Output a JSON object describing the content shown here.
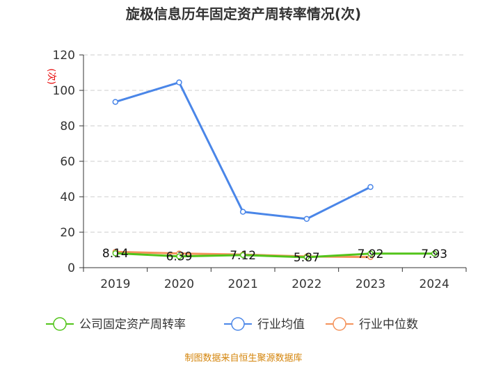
{
  "chart_data": {
    "type": "line",
    "title": "旋极信息历年固定资产周转率情况(次)",
    "ylabel": "(次)",
    "xlabel": "",
    "categories": [
      "2019",
      "2020",
      "2021",
      "2022",
      "2023",
      "2024"
    ],
    "ylim": [
      0,
      120
    ],
    "yticks": [
      "0",
      "20",
      "40",
      "60",
      "80",
      "100",
      "120"
    ],
    "grid": true,
    "series": [
      {
        "name": "公司固定资产周转率",
        "color": "#52c41a",
        "values": [
          8.14,
          6.39,
          7.12,
          5.87,
          7.92,
          7.93
        ],
        "labels": [
          "8.14",
          "6.39",
          "7.12",
          "5.87",
          "7.92",
          "7.93"
        ]
      },
      {
        "name": "行业均值",
        "color": "#4a86e8",
        "values": [
          93.5,
          104.5,
          31.5,
          27.5,
          45.5,
          null
        ]
      },
      {
        "name": "行业中位数",
        "color": "#f4925a",
        "values": [
          8.9,
          8.0,
          7.4,
          6.3,
          6.0,
          null
        ]
      }
    ],
    "legend": "bottom"
  },
  "footer": {
    "source": "制图数据来自恒生聚源数据库"
  }
}
